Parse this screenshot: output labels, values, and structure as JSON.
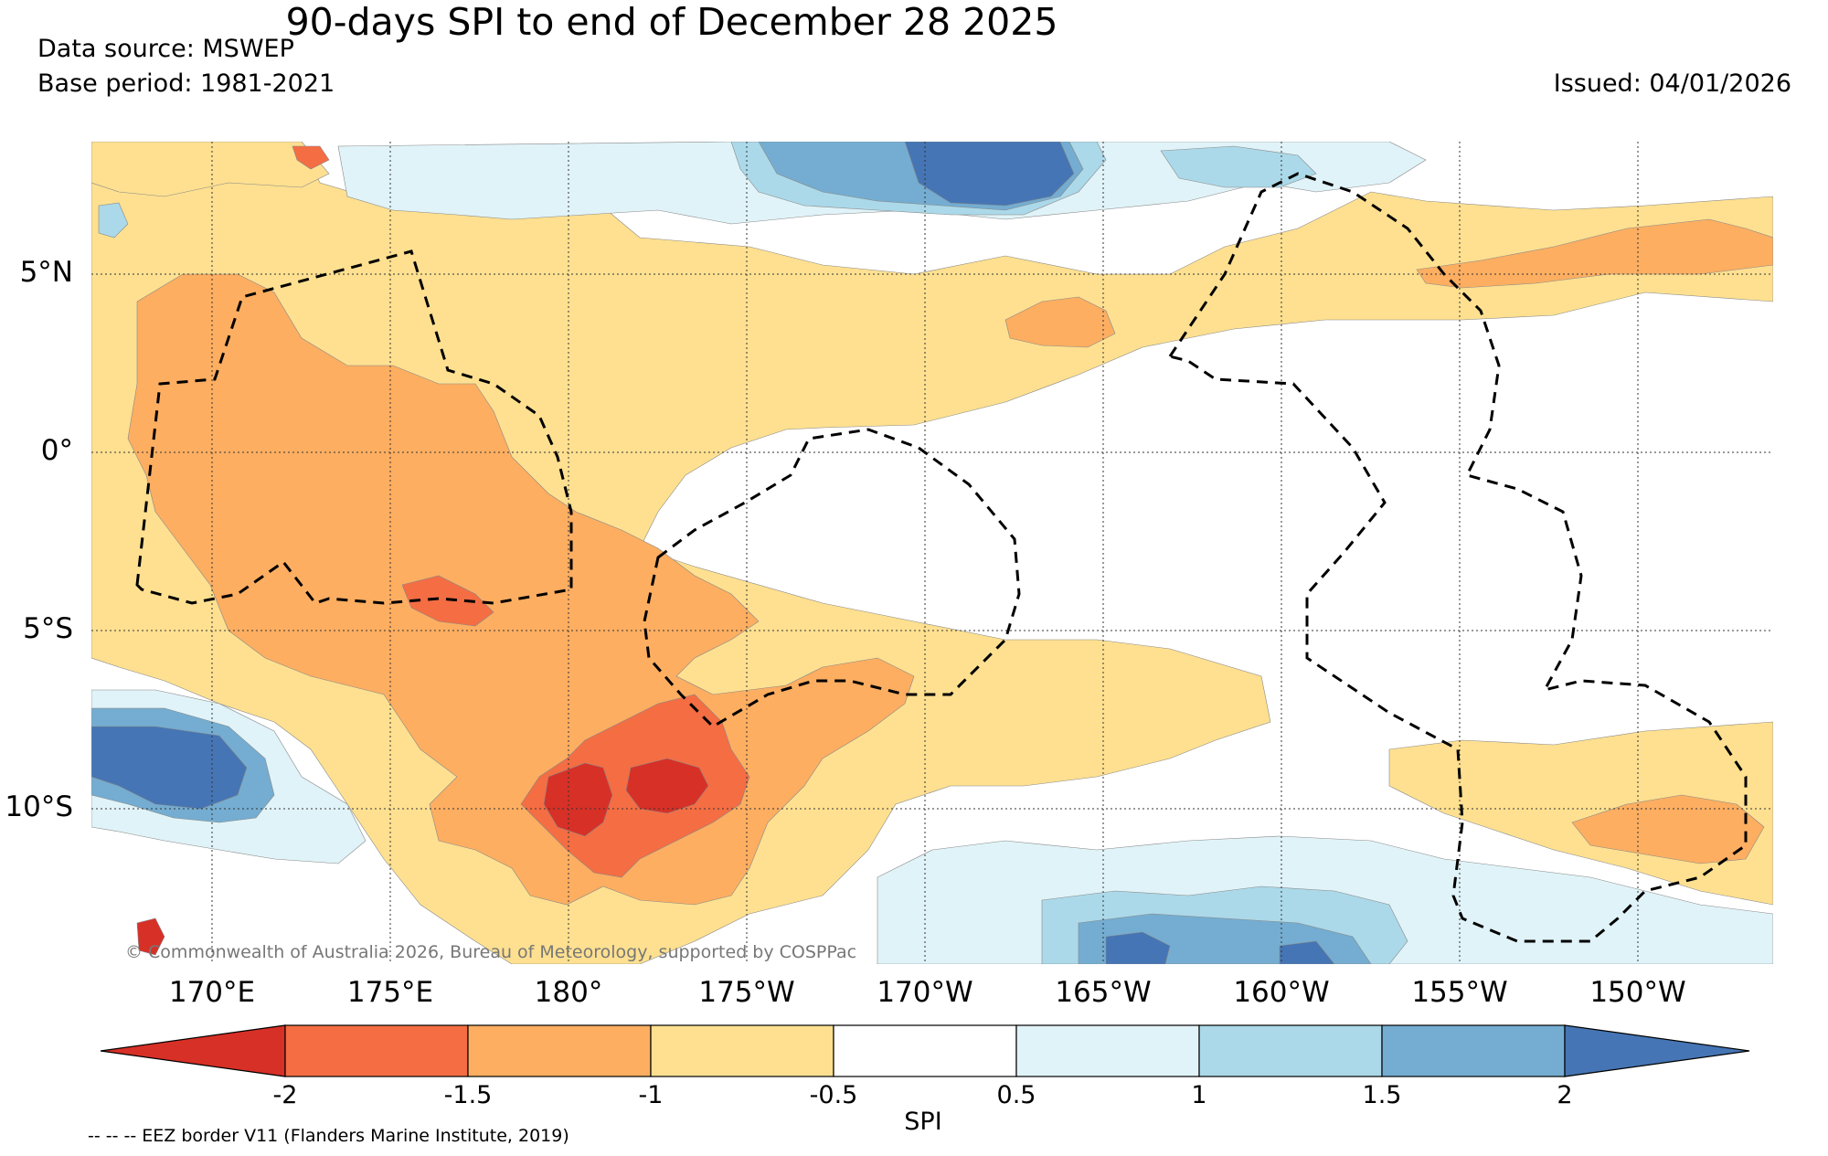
{
  "title": "90-days SPI to end of December 28 2025",
  "data_source": "Data source: MSWEP",
  "base_period": "Base period: 1981-2021",
  "issued": "Issued: 04/01/2026",
  "copyright": "© Commonwealth of Australia 2026, Bureau of Meteorology, supported by COSPPac",
  "eez_note": "-- -- -- EEZ border V11 (Flanders Marine Institute, 2019)",
  "map": {
    "latitude_labels": [
      "5°N",
      "0°",
      "5°S",
      "10°S"
    ],
    "longitude_labels": [
      "170°E",
      "175°E",
      "180°",
      "175°W",
      "170°W",
      "165°W",
      "160°W",
      "155°W",
      "150°W"
    ]
  },
  "colorbar": {
    "label": "SPI",
    "ticks": [
      "-2",
      "-1.5",
      "-1",
      "-0.5",
      "0.5",
      "1",
      "1.5",
      "2"
    ],
    "colors": [
      "#d73027",
      "#f46d43",
      "#fdae61",
      "#fee090",
      "#ffffff",
      "#e0f3f8",
      "#abd9e9",
      "#74add1",
      "#4575b4"
    ]
  },
  "colors": {
    "very_dry": "#d73027",
    "dry2": "#f46d43",
    "dry1": "#fdae61",
    "dry0": "#fee090",
    "normal": "#ffffff",
    "wet0": "#e0f3f8",
    "wet1": "#abd9e9",
    "wet2": "#74add1",
    "very_wet": "#4575b4"
  }
}
